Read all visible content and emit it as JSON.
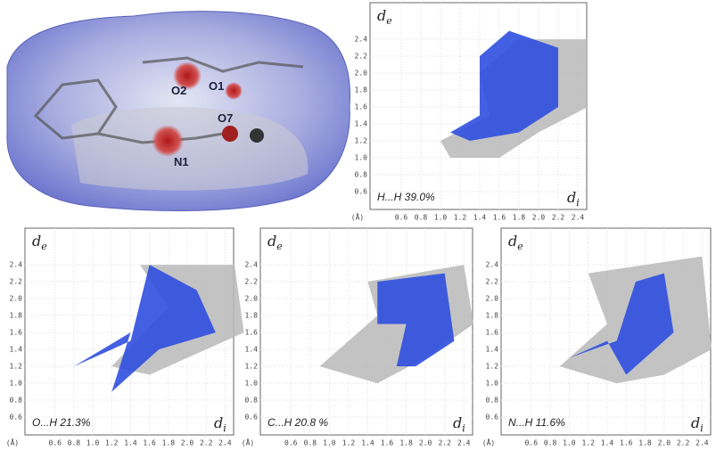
{
  "surface": {
    "labels": [
      "O2",
      "O1",
      "O7",
      "N1"
    ]
  },
  "unit": "(Å)",
  "axes": {
    "xticks": [
      0.6,
      0.8,
      {
        "value": 1,
        "label": "1.0"
      },
      1.2,
      1.4,
      1.6,
      1.8,
      {
        "value": 2,
        "label": "2.0"
      },
      2.2,
      2.4
    ],
    "yticks": [
      0.6,
      0.8,
      {
        "value": 1,
        "label": "1.0"
      },
      1.2,
      1.4,
      1.6,
      1.8,
      {
        "value": 2,
        "label": "2.0"
      },
      2.2,
      2.4
    ],
    "y_label": {
      "main": "d",
      "sub": "e"
    },
    "x_label": {
      "main": "d",
      "sub": "i"
    }
  },
  "plots": [
    {
      "label": "H...H  39.0%"
    },
    {
      "label": "O...H 21.3%"
    },
    {
      "label": "C...H 20.8 %"
    },
    {
      "label": "N...H 11.6%"
    }
  ]
}
